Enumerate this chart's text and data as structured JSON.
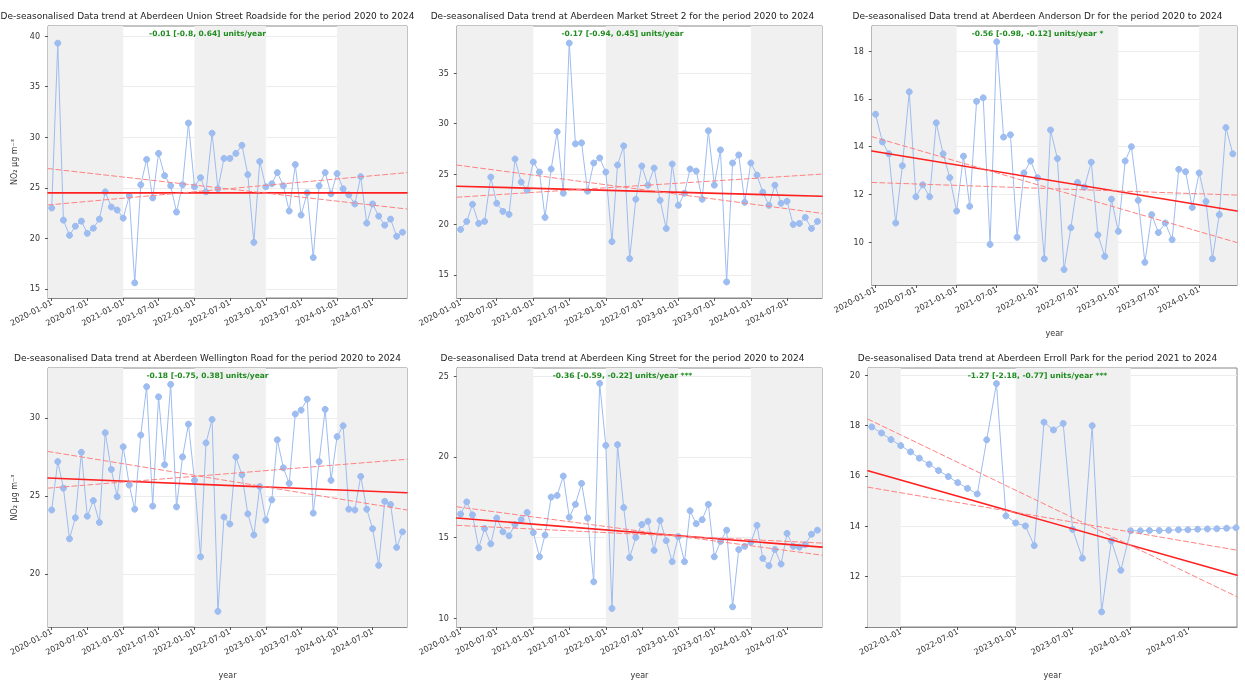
{
  "chart_data": [
    {
      "type": "line",
      "title": "De-seasonalised Data trend at Aberdeen Union Street Roadside for the period 2020 to 2024",
      "ylabel": "NO₂ μg m⁻³",
      "annotations": [
        "-0.01 [-0.8, 0.64] units/year"
      ],
      "x": [
        "2020-01",
        "2020-02",
        "2020-03",
        "2020-04",
        "2020-05",
        "2020-06",
        "2020-07",
        "2020-08",
        "2020-09",
        "2020-10",
        "2020-11",
        "2020-12",
        "2021-01",
        "2021-02",
        "2021-03",
        "2021-04",
        "2021-05",
        "2021-06",
        "2021-07",
        "2021-08",
        "2021-09",
        "2021-10",
        "2021-11",
        "2021-12",
        "2022-01",
        "2022-02",
        "2022-03",
        "2022-04",
        "2022-05",
        "2022-06",
        "2022-07",
        "2022-08",
        "2022-09",
        "2022-10",
        "2022-11",
        "2022-12",
        "2023-01",
        "2023-02",
        "2023-03",
        "2023-04",
        "2023-05",
        "2023-06",
        "2023-07",
        "2023-08",
        "2023-09",
        "2023-10",
        "2023-11",
        "2023-12",
        "2024-01",
        "2024-02",
        "2024-03",
        "2024-04",
        "2024-05",
        "2024-06",
        "2024-07",
        "2024-08",
        "2024-09",
        "2024-10",
        "2024-11",
        "2024-12"
      ],
      "series": [
        {
          "color": "#9dbcf0",
          "marker": "circle",
          "values": [
            23.0,
            39.3,
            21.8,
            20.3,
            21.2,
            21.7,
            20.5,
            21.0,
            21.9,
            24.6,
            23.1,
            22.8,
            22.0,
            24.2,
            15.6,
            25.3,
            27.8,
            24.0,
            28.4,
            26.2,
            25.2,
            22.6,
            25.3,
            31.4,
            25.1,
            26.0,
            24.6,
            30.4,
            24.9,
            27.9,
            27.9,
            28.4,
            29.2,
            26.3,
            19.6,
            27.6,
            25.1,
            25.4,
            26.5,
            25.2,
            22.7,
            27.3,
            22.3,
            24.5,
            18.1,
            25.2,
            26.5,
            24.4,
            26.4,
            24.9,
            24.3,
            23.4,
            26.1,
            21.5,
            23.4,
            22.2,
            21.3,
            21.9,
            20.2,
            20.6
          ]
        },
        {
          "color": "#ff2020",
          "marker": "none",
          "x": [
            "2019-12-13",
            "2024-12-24"
          ],
          "values": [
            24.5,
            24.5
          ]
        },
        {
          "color": "#ff8080",
          "marker": "none",
          "line_style": "dashed",
          "x": [
            "2019-12-13",
            "2024-12-24"
          ],
          "values": [
            26.9,
            22.9
          ]
        },
        {
          "color": "#ff8080",
          "marker": "none",
          "line_style": "dashed",
          "x": [
            "2019-12-13",
            "2024-12-24"
          ],
          "values": [
            23.3,
            26.5
          ]
        }
      ],
      "bands": [
        {
          "axis": "x",
          "from": "2019-12-13",
          "to": "2021-01-01",
          "color": "#f0f0f0"
        },
        {
          "axis": "x",
          "from": "2022-01-01",
          "to": "2023-01-01",
          "color": "#f0f0f0"
        },
        {
          "axis": "x",
          "from": "2024-01-01",
          "to": "2024-12-24",
          "color": "#f0f0f0"
        }
      ],
      "xlim": [
        "2019-12-13",
        "2024-12-24"
      ],
      "xticks": [
        "2020-01-01",
        "2020-07-01",
        "2021-01-01",
        "2021-07-01",
        "2022-01-01",
        "2022-07-01",
        "2023-01-01",
        "2023-07-01",
        "2024-01-01",
        "2024-07-01"
      ],
      "ylim": [
        14.1,
        41.0
      ],
      "yticks": [
        15,
        20,
        25,
        30,
        35,
        40
      ],
      "grid": "y"
    },
    {
      "type": "line",
      "title": "De-seasonalised Data trend at Aberdeen Market Street 2 for the period 2020 to 2024",
      "annotations": [
        "-0.17 [-0.94, 0.45] units/year"
      ],
      "x": [
        "2020-01",
        "2020-02",
        "2020-03",
        "2020-04",
        "2020-05",
        "2020-06",
        "2020-07",
        "2020-08",
        "2020-09",
        "2020-10",
        "2020-11",
        "2020-12",
        "2021-01",
        "2021-02",
        "2021-03",
        "2021-04",
        "2021-05",
        "2021-06",
        "2021-07",
        "2021-08",
        "2021-09",
        "2021-10",
        "2021-11",
        "2021-12",
        "2022-01",
        "2022-02",
        "2022-03",
        "2022-04",
        "2022-05",
        "2022-06",
        "2022-07",
        "2022-08",
        "2022-09",
        "2022-10",
        "2022-11",
        "2022-12",
        "2023-01",
        "2023-02",
        "2023-03",
        "2023-04",
        "2023-05",
        "2023-06",
        "2023-07",
        "2023-08",
        "2023-09",
        "2023-10",
        "2023-11",
        "2023-12",
        "2024-01",
        "2024-02",
        "2024-03",
        "2024-04",
        "2024-05",
        "2024-06",
        "2024-07",
        "2024-08",
        "2024-09",
        "2024-10",
        "2024-11",
        "2024-12"
      ],
      "series": [
        {
          "color": "#9dbcf0",
          "marker": "circle",
          "values": [
            19.5,
            20.3,
            22.0,
            20.1,
            20.3,
            24.7,
            22.1,
            21.3,
            21.0,
            26.5,
            24.2,
            23.4,
            26.2,
            25.2,
            20.7,
            25.5,
            29.2,
            23.1,
            38.0,
            28.0,
            28.1,
            23.3,
            26.1,
            26.6,
            25.2,
            18.3,
            25.9,
            27.8,
            16.6,
            22.5,
            25.8,
            23.9,
            25.6,
            22.4,
            19.6,
            26.0,
            21.9,
            23.1,
            25.5,
            25.3,
            22.5,
            29.3,
            23.9,
            27.4,
            14.3,
            26.1,
            26.9,
            22.2,
            26.1,
            24.9,
            23.2,
            21.9,
            23.9,
            22.1,
            22.3,
            20.0,
            20.1,
            20.7,
            19.6,
            20.3
          ]
        },
        {
          "color": "#ff2020",
          "marker": "none",
          "x": [
            "2019-12-13",
            "2024-12-24"
          ],
          "values": [
            23.8,
            22.8
          ]
        },
        {
          "color": "#ff8080",
          "marker": "none",
          "line_style": "dashed",
          "x": [
            "2019-12-13",
            "2024-12-24"
          ],
          "values": [
            25.9,
            21.1
          ]
        },
        {
          "color": "#ff8080",
          "marker": "none",
          "line_style": "dashed",
          "x": [
            "2019-12-13",
            "2024-12-24"
          ],
          "values": [
            22.7,
            25.0
          ]
        }
      ],
      "bands": [
        {
          "axis": "x",
          "from": "2019-12-13",
          "to": "2021-01-01",
          "color": "#f0f0f0"
        },
        {
          "axis": "x",
          "from": "2022-01-01",
          "to": "2023-01-01",
          "color": "#f0f0f0"
        },
        {
          "axis": "x",
          "from": "2024-01-01",
          "to": "2024-12-24",
          "color": "#f0f0f0"
        }
      ],
      "xlim": [
        "2019-12-13",
        "2024-12-24"
      ],
      "xticks": [
        "2020-01-01",
        "2020-07-01",
        "2021-01-01",
        "2021-07-01",
        "2022-01-01",
        "2022-07-01",
        "2023-01-01",
        "2023-07-01",
        "2024-01-01",
        "2024-07-01"
      ],
      "ylim": [
        12.7,
        39.7
      ],
      "yticks": [
        15,
        20,
        25,
        30,
        35
      ],
      "grid": "y"
    },
    {
      "type": "line",
      "title": "De-seasonalised Data trend at Aberdeen Anderson Dr for the period 2020 to 2024",
      "xlabel": "year",
      "annotations": [
        "-0.56 [-0.98, -0.12] units/year *"
      ],
      "x": [
        "2020-01",
        "2020-02",
        "2020-03",
        "2020-04",
        "2020-05",
        "2020-06",
        "2020-07",
        "2020-08",
        "2020-09",
        "2020-10",
        "2020-11",
        "2020-12",
        "2021-01",
        "2021-02",
        "2021-03",
        "2021-04",
        "2021-05",
        "2021-06",
        "2021-07",
        "2021-08",
        "2021-09",
        "2021-10",
        "2021-11",
        "2021-12",
        "2022-01",
        "2022-02",
        "2022-03",
        "2022-04",
        "2022-05",
        "2022-06",
        "2022-07",
        "2022-08",
        "2022-09",
        "2022-10",
        "2022-11",
        "2022-12",
        "2023-01",
        "2023-02",
        "2023-03",
        "2023-04",
        "2023-05",
        "2023-06",
        "2023-07",
        "2023-08",
        "2023-09",
        "2023-10",
        "2023-11",
        "2023-12",
        "2024-01",
        "2024-02",
        "2024-03",
        "2024-04",
        "2024-05",
        "2024-06"
      ],
      "series": [
        {
          "color": "#9dbcf0",
          "marker": "circle",
          "values": [
            15.36,
            14.2,
            13.7,
            10.8,
            13.2,
            16.3,
            11.9,
            12.4,
            11.9,
            15.0,
            13.7,
            12.7,
            11.3,
            13.6,
            11.5,
            15.9,
            16.05,
            9.9,
            18.4,
            14.4,
            14.5,
            10.2,
            12.9,
            13.4,
            12.7,
            9.3,
            14.7,
            13.5,
            8.85,
            10.6,
            12.5,
            12.3,
            13.35,
            10.3,
            9.4,
            11.8,
            10.45,
            13.4,
            14.0,
            11.75,
            9.15,
            11.15,
            10.4,
            10.8,
            10.1,
            13.05,
            12.95,
            11.45,
            12.9,
            11.7,
            9.3,
            11.15,
            14.8,
            13.7
          ]
        },
        {
          "color": "#ff2020",
          "marker": "none",
          "x": [
            "2019-12-15",
            "2024-06-20"
          ],
          "values": [
            13.82,
            11.3
          ]
        },
        {
          "color": "#ff8080",
          "marker": "none",
          "line_style": "dashed",
          "x": [
            "2019-12-15",
            "2024-06-20"
          ],
          "values": [
            14.42,
            9.98
          ]
        },
        {
          "color": "#ff8080",
          "marker": "none",
          "line_style": "dashed",
          "x": [
            "2019-12-15",
            "2024-06-20"
          ],
          "values": [
            12.5,
            11.97
          ]
        }
      ],
      "bands": [
        {
          "axis": "x",
          "from": "2019-12-15",
          "to": "2021-01-01",
          "color": "#f0f0f0"
        },
        {
          "axis": "x",
          "from": "2022-01-01",
          "to": "2023-01-01",
          "color": "#f0f0f0"
        },
        {
          "axis": "x",
          "from": "2024-01-01",
          "to": "2024-06-20",
          "color": "#f0f0f0"
        }
      ],
      "xlim": [
        "2019-12-15",
        "2024-06-20"
      ],
      "xticks": [
        "2020-01-01",
        "2020-07-01",
        "2021-01-01",
        "2021-07-01",
        "2022-01-01",
        "2022-07-01",
        "2023-01-01",
        "2023-07-01",
        "2024-01-01"
      ],
      "ylim": [
        8.2,
        19.06
      ],
      "yticks": [
        10,
        12,
        14,
        16,
        18
      ],
      "grid": "y"
    },
    {
      "type": "line",
      "title": "De-seasonalised Data trend at Aberdeen Wellington Road for the period 2020 to 2024",
      "xlabel": "year",
      "ylabel": "NO₂ μg m⁻³",
      "annotations": [
        "-0.18 [-0.75, 0.38] units/year"
      ],
      "x": [
        "2020-01",
        "2020-02",
        "2020-03",
        "2020-04",
        "2020-05",
        "2020-06",
        "2020-07",
        "2020-08",
        "2020-09",
        "2020-10",
        "2020-11",
        "2020-12",
        "2021-01",
        "2021-02",
        "2021-03",
        "2021-04",
        "2021-05",
        "2021-06",
        "2021-07",
        "2021-08",
        "2021-09",
        "2021-10",
        "2021-11",
        "2021-12",
        "2022-01",
        "2022-02",
        "2022-03",
        "2022-04",
        "2022-05",
        "2022-06",
        "2022-07",
        "2022-08",
        "2022-09",
        "2022-10",
        "2022-11",
        "2022-12",
        "2023-01",
        "2023-02",
        "2023-03",
        "2023-04",
        "2023-05",
        "2023-06",
        "2023-07",
        "2023-08",
        "2023-09",
        "2023-10",
        "2023-11",
        "2023-12",
        "2024-01",
        "2024-02",
        "2024-03",
        "2024-04",
        "2024-05",
        "2024-06",
        "2024-07",
        "2024-08",
        "2024-09",
        "2024-10",
        "2024-11",
        "2024-12"
      ],
      "series": [
        {
          "color": "#9dbcf0",
          "marker": "circle",
          "values": [
            24.1,
            27.2,
            25.5,
            22.25,
            23.6,
            27.8,
            23.7,
            24.7,
            23.3,
            29.05,
            26.7,
            24.95,
            28.15,
            25.7,
            24.15,
            28.9,
            32.0,
            24.35,
            31.35,
            27.0,
            32.15,
            24.3,
            27.5,
            29.6,
            26.0,
            21.1,
            28.4,
            29.9,
            17.6,
            23.65,
            23.2,
            27.5,
            26.35,
            23.85,
            22.5,
            25.6,
            23.45,
            24.75,
            28.6,
            26.8,
            25.8,
            30.25,
            30.5,
            31.2,
            23.9,
            27.2,
            30.55,
            26.0,
            28.8,
            29.5,
            24.15,
            24.1,
            26.25,
            24.15,
            22.9,
            20.55,
            24.65,
            24.45,
            21.7,
            22.7
          ]
        },
        {
          "color": "#ff2020",
          "marker": "none",
          "x": [
            "2019-12-13",
            "2024-12-24"
          ],
          "values": [
            26.15,
            25.2
          ]
        },
        {
          "color": "#ff8080",
          "marker": "none",
          "line_style": "dashed",
          "x": [
            "2019-12-13",
            "2024-12-24"
          ],
          "values": [
            27.85,
            24.1
          ]
        },
        {
          "color": "#ff8080",
          "marker": "none",
          "line_style": "dashed",
          "x": [
            "2019-12-13",
            "2024-12-24"
          ],
          "values": [
            25.5,
            27.35
          ]
        }
      ],
      "bands": [
        {
          "axis": "x",
          "from": "2019-12-13",
          "to": "2021-01-01",
          "color": "#f0f0f0"
        },
        {
          "axis": "x",
          "from": "2022-01-01",
          "to": "2023-01-01",
          "color": "#f0f0f0"
        },
        {
          "axis": "x",
          "from": "2024-01-01",
          "to": "2024-12-24",
          "color": "#f0f0f0"
        }
      ],
      "xlim": [
        "2019-12-13",
        "2024-12-24"
      ],
      "xticks": [
        "2020-01-01",
        "2020-07-01",
        "2021-01-01",
        "2021-07-01",
        "2022-01-01",
        "2022-07-01",
        "2023-01-01",
        "2023-07-01",
        "2024-01-01",
        "2024-07-01"
      ],
      "ylim": [
        16.6,
        33.2
      ],
      "yticks": [
        20,
        25,
        30
      ],
      "grid": "y"
    },
    {
      "type": "line",
      "title": "De-seasonalised Data trend at Aberdeen King Street for the period 2020 to 2024",
      "xlabel": "year",
      "annotations": [
        "-0.36 [-0.59, -0.22] units/year ***"
      ],
      "x": [
        "2020-01",
        "2020-02",
        "2020-03",
        "2020-04",
        "2020-05",
        "2020-06",
        "2020-07",
        "2020-08",
        "2020-09",
        "2020-10",
        "2020-11",
        "2020-12",
        "2021-01",
        "2021-02",
        "2021-03",
        "2021-04",
        "2021-05",
        "2021-06",
        "2021-07",
        "2021-08",
        "2021-09",
        "2021-10",
        "2021-11",
        "2021-12",
        "2022-01",
        "2022-02",
        "2022-03",
        "2022-04",
        "2022-05",
        "2022-06",
        "2022-07",
        "2022-08",
        "2022-09",
        "2022-10",
        "2022-11",
        "2022-12",
        "2023-01",
        "2023-02",
        "2023-03",
        "2023-04",
        "2023-05",
        "2023-06",
        "2023-07",
        "2023-08",
        "2023-09",
        "2023-10",
        "2023-11",
        "2023-12",
        "2024-01",
        "2024-02",
        "2024-03",
        "2024-04",
        "2024-05",
        "2024-06",
        "2024-07",
        "2024-08",
        "2024-09",
        "2024-10",
        "2024-11",
        "2024-12"
      ],
      "series": [
        {
          "color": "#9dbcf0",
          "marker": "circle",
          "values": [
            16.45,
            17.2,
            16.4,
            14.35,
            15.55,
            14.6,
            16.2,
            15.35,
            15.1,
            15.8,
            16.1,
            16.55,
            15.3,
            13.8,
            15.15,
            17.5,
            17.6,
            18.8,
            16.25,
            17.05,
            18.35,
            16.2,
            12.25,
            24.55,
            20.7,
            10.6,
            20.75,
            16.85,
            13.75,
            15.0,
            15.8,
            16.0,
            14.2,
            16.05,
            14.8,
            13.5,
            15.05,
            13.5,
            16.65,
            15.85,
            16.1,
            17.05,
            13.8,
            14.75,
            15.45,
            10.7,
            14.25,
            14.45,
            14.7,
            15.75,
            13.7,
            13.25,
            14.25,
            13.35,
            15.25,
            14.45,
            14.4,
            14.55,
            15.2,
            15.45
          ]
        },
        {
          "color": "#ff2020",
          "marker": "none",
          "x": [
            "2019-12-13",
            "2024-12-24"
          ],
          "values": [
            16.2,
            14.4
          ]
        },
        {
          "color": "#ff8080",
          "marker": "none",
          "line_style": "dashed",
          "x": [
            "2019-12-13",
            "2024-12-24"
          ],
          "values": [
            16.9,
            13.9
          ]
        },
        {
          "color": "#ff8080",
          "marker": "none",
          "line_style": "dashed",
          "x": [
            "2019-12-13",
            "2024-12-24"
          ],
          "values": [
            15.75,
            14.65
          ]
        }
      ],
      "bands": [
        {
          "axis": "x",
          "from": "2019-12-13",
          "to": "2021-01-01",
          "color": "#f0f0f0"
        },
        {
          "axis": "x",
          "from": "2022-01-01",
          "to": "2023-01-01",
          "color": "#f0f0f0"
        },
        {
          "axis": "x",
          "from": "2024-01-01",
          "to": "2024-12-24",
          "color": "#f0f0f0"
        }
      ],
      "xlim": [
        "2019-12-13",
        "2024-12-24"
      ],
      "xticks": [
        "2020-01-01",
        "2020-07-01",
        "2021-01-01",
        "2021-07-01",
        "2022-01-01",
        "2022-07-01",
        "2023-01-01",
        "2023-07-01",
        "2024-01-01",
        "2024-07-01"
      ],
      "ylim": [
        9.45,
        25.5
      ],
      "yticks": [
        10,
        15,
        20,
        25
      ],
      "grid": "y"
    },
    {
      "type": "line",
      "title": "De-seasonalised Data trend at Aberdeen Erroll Park for the period 2021 to 2024",
      "xlabel": "year",
      "annotations": [
        "-1.27 [-2.18, -0.77] units/year ***"
      ],
      "x": [
        "2021-10",
        "2021-11",
        "2021-12",
        "2022-01",
        "2022-02",
        "2022-03",
        "2022-04",
        "2022-05",
        "2022-06",
        "2022-07",
        "2022-08",
        "2022-09",
        "2022-10",
        "2022-11",
        "2022-12",
        "2023-01",
        "2023-02",
        "2023-03",
        "2023-04",
        "2023-05",
        "2023-06",
        "2023-07",
        "2023-08",
        "2023-09",
        "2023-10",
        "2023-11",
        "2023-12",
        "2024-01",
        "2024-02",
        "2024-03",
        "2024-04",
        "2024-05",
        "2024-06",
        "2024-07",
        "2024-08",
        "2024-09",
        "2024-10",
        "2024-11",
        "2024-12"
      ],
      "series": [
        {
          "color": "#9dbcf0",
          "marker": "circle",
          "values": [
            17.94,
            17.7,
            17.44,
            17.2,
            16.95,
            16.7,
            16.46,
            16.21,
            15.97,
            15.73,
            15.5,
            15.28,
            17.43,
            19.66,
            14.41,
            14.13,
            14.01,
            13.23,
            18.13,
            17.82,
            18.08,
            13.87,
            12.73,
            17.99,
            10.6,
            13.42,
            12.25,
            13.82,
            13.82,
            13.83,
            13.83,
            13.84,
            13.86,
            13.86,
            13.88,
            13.89,
            13.9,
            13.92,
            13.94
          ]
        },
        {
          "color": "#ff2020",
          "marker": "none",
          "x": [
            "2021-09-19",
            "2024-12-04"
          ],
          "values": [
            16.2,
            12.05
          ]
        },
        {
          "color": "#ff8080",
          "marker": "none",
          "line_style": "dashed",
          "x": [
            "2021-09-19",
            "2024-12-04"
          ],
          "values": [
            18.25,
            11.2
          ]
        },
        {
          "color": "#ff8080",
          "marker": "none",
          "line_style": "dashed",
          "x": [
            "2021-09-19",
            "2024-12-04"
          ],
          "values": [
            15.55,
            13.05
          ]
        }
      ],
      "bands": [
        {
          "axis": "x",
          "from": "2021-09-19",
          "to": "2022-01-01",
          "color": "#f0f0f0"
        },
        {
          "axis": "x",
          "from": "2023-01-01",
          "to": "2024-01-01",
          "color": "#f0f0f0"
        }
      ],
      "xlim": [
        "2021-09-19",
        "2024-12-04"
      ],
      "xticks": [
        "2022-01-01",
        "2022-07-01",
        "2023-01-01",
        "2023-07-01",
        "2024-01-01",
        "2024-07-01"
      ],
      "ylim": [
        10.0,
        20.28
      ],
      "yticks": [
        {
          "value": 10,
          "label": null
        },
        12,
        14,
        16,
        18,
        20
      ],
      "grid": "y"
    }
  ]
}
